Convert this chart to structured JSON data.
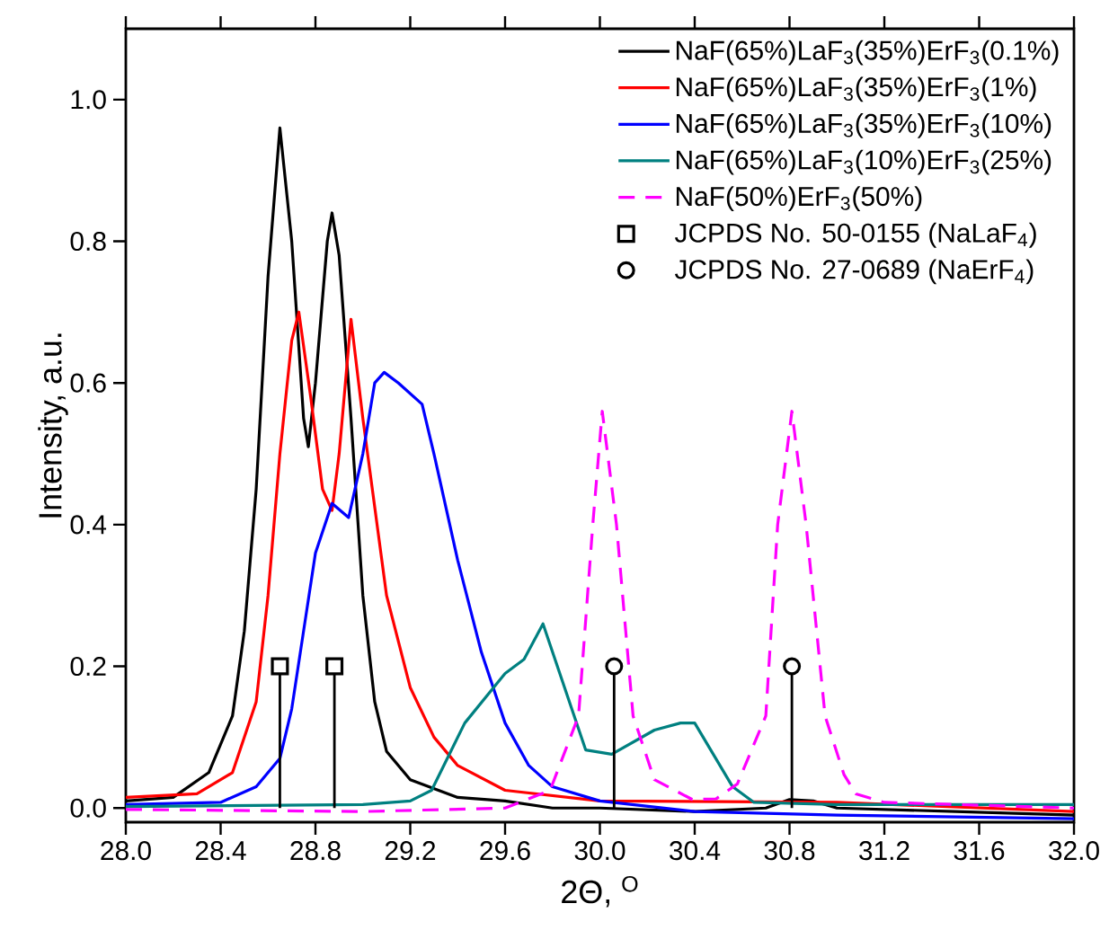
{
  "chart_data": {
    "type": "line",
    "xlabel": "2Θ, $^{O}$",
    "ylabel": "Intensity, a.u.",
    "xlim": [
      28.0,
      32.0
    ],
    "ylim": [
      -0.02,
      1.1
    ],
    "xticks": [
      {
        "value": 28.0,
        "label": "28.0"
      },
      {
        "value": 28.4,
        "label": "28.4"
      },
      {
        "value": 28.8,
        "label": "28.8"
      },
      {
        "value": 29.2,
        "label": "29.2"
      },
      {
        "value": 29.6,
        "label": "29.6"
      },
      {
        "value": 30.0,
        "label": "30.0"
      },
      {
        "value": 30.4,
        "label": "30.4"
      },
      {
        "value": 30.8,
        "label": "30.8"
      },
      {
        "value": 31.2,
        "label": "31.2"
      },
      {
        "value": 31.6,
        "label": "31.6"
      },
      {
        "value": 32.0,
        "label": "32.0"
      }
    ],
    "yticks": [
      {
        "value": 0.0,
        "label": "0.0"
      },
      {
        "value": 0.2,
        "label": "0.2"
      },
      {
        "value": 0.4,
        "label": "0.4"
      },
      {
        "value": 0.6,
        "label": "0.6"
      },
      {
        "value": 0.8,
        "label": "0.8"
      },
      {
        "value": 1.0,
        "label": "1.0"
      }
    ],
    "legend": "top right",
    "series": [
      {
        "name": "NaF(65%)LaF$_{3}$(35%)ErF$_{3}$(0.1%)",
        "color": "#000000",
        "x": [
          28.0,
          28.2,
          28.35,
          28.45,
          28.5,
          28.55,
          28.6,
          28.65,
          28.7,
          28.75,
          28.77,
          28.8,
          28.85,
          28.87,
          28.9,
          28.95,
          29.0,
          29.05,
          29.1,
          29.2,
          29.4,
          29.6,
          29.8,
          30.0,
          30.4,
          30.7,
          30.8,
          30.9,
          31.0,
          31.5,
          32.0
        ],
        "values": [
          0.01,
          0.015,
          0.05,
          0.13,
          0.25,
          0.45,
          0.75,
          0.96,
          0.8,
          0.55,
          0.51,
          0.6,
          0.8,
          0.84,
          0.78,
          0.55,
          0.3,
          0.15,
          0.08,
          0.04,
          0.015,
          0.01,
          0.0,
          0.0,
          -0.005,
          0.0,
          0.012,
          0.01,
          0.0,
          -0.005,
          -0.01
        ]
      },
      {
        "name": "NaF(65%)LaF$_{3}$(35%)ErF$_{3}$(1%)",
        "color": "#ff0000",
        "x": [
          28.0,
          28.3,
          28.45,
          28.55,
          28.6,
          28.65,
          28.7,
          28.73,
          28.78,
          28.83,
          28.87,
          28.9,
          28.95,
          29.0,
          29.1,
          29.2,
          29.3,
          29.4,
          29.6,
          30.0,
          31.0,
          32.0
        ],
        "values": [
          0.015,
          0.02,
          0.05,
          0.15,
          0.3,
          0.5,
          0.66,
          0.7,
          0.58,
          0.45,
          0.42,
          0.5,
          0.69,
          0.55,
          0.3,
          0.17,
          0.1,
          0.06,
          0.025,
          0.01,
          0.008,
          -0.005
        ]
      },
      {
        "name": "NaF(65%)LaF$_{3}$(35%)ErF$_{3}$(10%)",
        "color": "#0000ff",
        "x": [
          28.0,
          28.4,
          28.55,
          28.65,
          28.7,
          28.75,
          28.8,
          28.87,
          28.94,
          29.0,
          29.05,
          29.09,
          29.15,
          29.25,
          29.3,
          29.4,
          29.5,
          29.6,
          29.7,
          29.8,
          30.0,
          30.4,
          31.0,
          32.0
        ],
        "values": [
          0.005,
          0.008,
          0.03,
          0.07,
          0.14,
          0.25,
          0.36,
          0.43,
          0.41,
          0.5,
          0.6,
          0.615,
          0.6,
          0.57,
          0.5,
          0.35,
          0.22,
          0.12,
          0.06,
          0.03,
          0.01,
          -0.005,
          -0.01,
          -0.015
        ]
      },
      {
        "name": "NaF(65%)LaF$_{3}$(10%)ErF$_{3}$(25%)",
        "color": "#008080",
        "x": [
          28.0,
          29.0,
          29.2,
          29.29,
          29.43,
          29.6,
          29.68,
          29.76,
          29.94,
          30.05,
          30.23,
          30.34,
          30.4,
          30.56,
          30.65,
          31.0,
          32.0
        ],
        "values": [
          0.002,
          0.005,
          0.01,
          0.025,
          0.12,
          0.19,
          0.21,
          0.26,
          0.082,
          0.076,
          0.11,
          0.12,
          0.12,
          0.03,
          0.008,
          0.005,
          0.005
        ]
      },
      {
        "name": "NaF(50%)ErF$_{3}$(50%)",
        "color": "#ff00ff",
        "line_style": "dashed",
        "x": [
          28.0,
          29.0,
          29.6,
          29.79,
          29.91,
          29.97,
          30.01,
          30.07,
          30.14,
          30.23,
          30.39,
          30.49,
          30.58,
          30.7,
          30.75,
          30.81,
          30.87,
          30.95,
          31.03,
          31.08,
          31.2,
          32.0
        ],
        "values": [
          -0.002,
          -0.005,
          0.0,
          0.025,
          0.13,
          0.4,
          0.56,
          0.4,
          0.13,
          0.04,
          0.012,
          0.013,
          0.034,
          0.13,
          0.4,
          0.56,
          0.4,
          0.13,
          0.047,
          0.02,
          0.008,
          0.0
        ]
      },
      {
        "name": "JCPDS No. 50-0155 (NaLaF$_{4}$)",
        "type": "lollipop",
        "color": "#000000",
        "marker": "square",
        "x": [
          28.65,
          28.88
        ],
        "values": [
          0.2,
          0.2
        ]
      },
      {
        "name": "JCPDS No. 27-0689 (NaErF$_{4}$)",
        "type": "lollipop",
        "color": "#000000",
        "marker": "circle",
        "x": [
          30.06,
          30.81
        ],
        "values": [
          0.2,
          0.2
        ]
      }
    ]
  }
}
